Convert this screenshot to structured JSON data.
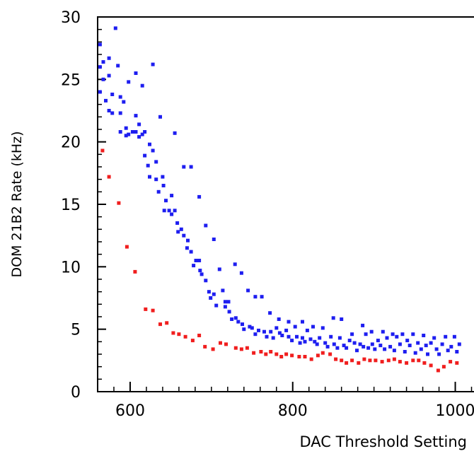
{
  "chart_data": {
    "type": "scatter",
    "title": "",
    "xlabel": "DAC Threshold Setting",
    "ylabel": "DOM 21B2 Rate (kHz)",
    "xlim": [
      560,
      1030
    ],
    "ylim": [
      0,
      30
    ],
    "xticks": [
      600,
      800,
      1000
    ],
    "xtick_labels": [
      "600",
      "800",
      "1000"
    ],
    "yticks": [
      0,
      5,
      10,
      15,
      20,
      25,
      30
    ],
    "ytick_labels": [
      "0",
      "5",
      "10",
      "15",
      "20",
      "25",
      "30"
    ],
    "grid": false,
    "legend": "none",
    "series": [
      {
        "color": "#1e1ef0",
        "points": [
          [
            563,
            27.8
          ],
          [
            563,
            26.0
          ],
          [
            563,
            24.0
          ],
          [
            567,
            26.4
          ],
          [
            567,
            25.0
          ],
          [
            570,
            23.3
          ],
          [
            574,
            26.7
          ],
          [
            574,
            25.3
          ],
          [
            574,
            22.5
          ],
          [
            578,
            23.8
          ],
          [
            578,
            22.3
          ],
          [
            582,
            29.1
          ],
          [
            585,
            26.1
          ],
          [
            588,
            23.6
          ],
          [
            588,
            22.3
          ],
          [
            588,
            20.8
          ],
          [
            592,
            23.2
          ],
          [
            595,
            21.1
          ],
          [
            595,
            20.5
          ],
          [
            598,
            24.8
          ],
          [
            598,
            20.6
          ],
          [
            603,
            20.8
          ],
          [
            607,
            25.5
          ],
          [
            607,
            22.1
          ],
          [
            607,
            20.8
          ],
          [
            611,
            21.4
          ],
          [
            611,
            20.4
          ],
          [
            615,
            24.5
          ],
          [
            615,
            20.6
          ],
          [
            618,
            20.8
          ],
          [
            618,
            18.9
          ],
          [
            622,
            18.1
          ],
          [
            624,
            19.8
          ],
          [
            624,
            17.2
          ],
          [
            628,
            26.2
          ],
          [
            628,
            19.3
          ],
          [
            632,
            18.4
          ],
          [
            632,
            17.0
          ],
          [
            635,
            16.0
          ],
          [
            637,
            22.0
          ],
          [
            640,
            17.2
          ],
          [
            641,
            16.5
          ],
          [
            642,
            14.5
          ],
          [
            644,
            15.3
          ],
          [
            648,
            14.5
          ],
          [
            651,
            15.7
          ],
          [
            651,
            14.2
          ],
          [
            655,
            20.7
          ],
          [
            655,
            14.5
          ],
          [
            658,
            13.5
          ],
          [
            659,
            12.8
          ],
          [
            663,
            13.0
          ],
          [
            666,
            18.0
          ],
          [
            666,
            12.5
          ],
          [
            670,
            11.5
          ],
          [
            671,
            12.1
          ],
          [
            675,
            18.0
          ],
          [
            675,
            11.2
          ],
          [
            678,
            10.1
          ],
          [
            681,
            10.5
          ],
          [
            685,
            15.6
          ],
          [
            685,
            10.5
          ],
          [
            686,
            9.7
          ],
          [
            688,
            9.4
          ],
          [
            693,
            13.3
          ],
          [
            693,
            8.9
          ],
          [
            697,
            8.0
          ],
          [
            699,
            7.5
          ],
          [
            703,
            12.2
          ],
          [
            703,
            7.8
          ],
          [
            706,
            6.9
          ],
          [
            710,
            9.8
          ],
          [
            714,
            8.1
          ],
          [
            717,
            7.2
          ],
          [
            717,
            6.8
          ],
          [
            721,
            7.2
          ],
          [
            722,
            6.4
          ],
          [
            725,
            5.8
          ],
          [
            729,
            10.2
          ],
          [
            730,
            5.9
          ],
          [
            733,
            5.6
          ],
          [
            737,
            9.5
          ],
          [
            738,
            5.4
          ],
          [
            740,
            5.0
          ],
          [
            745,
            8.1
          ],
          [
            747,
            5.2
          ],
          [
            750,
            5.1
          ],
          [
            754,
            7.6
          ],
          [
            754,
            4.6
          ],
          [
            758,
            4.9
          ],
          [
            762,
            7.6
          ],
          [
            765,
            4.8
          ],
          [
            768,
            4.4
          ],
          [
            772,
            6.3
          ],
          [
            773,
            4.8
          ],
          [
            776,
            4.3
          ],
          [
            780,
            5.1
          ],
          [
            783,
            5.8
          ],
          [
            784,
            4.7
          ],
          [
            787,
            4.5
          ],
          [
            792,
            4.9
          ],
          [
            795,
            5.6
          ],
          [
            795,
            4.4
          ],
          [
            799,
            4.1
          ],
          [
            803,
            5.2
          ],
          [
            805,
            4.4
          ],
          [
            809,
            3.9
          ],
          [
            812,
            5.6
          ],
          [
            812,
            4.3
          ],
          [
            815,
            4.0
          ],
          [
            818,
            4.9
          ],
          [
            822,
            4.2
          ],
          [
            825,
            5.2
          ],
          [
            827,
            4.0
          ],
          [
            830,
            3.8
          ],
          [
            833,
            4.3
          ],
          [
            837,
            5.1
          ],
          [
            840,
            3.9
          ],
          [
            843,
            3.6
          ],
          [
            847,
            4.4
          ],
          [
            850,
            5.9
          ],
          [
            851,
            3.8
          ],
          [
            855,
            3.5
          ],
          [
            858,
            4.3
          ],
          [
            860,
            5.8
          ],
          [
            863,
            3.7
          ],
          [
            866,
            3.5
          ],
          [
            870,
            4.1
          ],
          [
            873,
            4.6
          ],
          [
            876,
            3.9
          ],
          [
            879,
            3.3
          ],
          [
            883,
            3.8
          ],
          [
            886,
            5.3
          ],
          [
            887,
            3.6
          ],
          [
            890,
            4.6
          ],
          [
            893,
            3.5
          ],
          [
            897,
            4.8
          ],
          [
            898,
            3.8
          ],
          [
            901,
            3.4
          ],
          [
            905,
            4.1
          ],
          [
            908,
            3.7
          ],
          [
            911,
            4.8
          ],
          [
            913,
            3.4
          ],
          [
            916,
            4.3
          ],
          [
            920,
            3.6
          ],
          [
            923,
            4.6
          ],
          [
            925,
            3.3
          ],
          [
            928,
            4.4
          ],
          [
            932,
            3.8
          ],
          [
            935,
            4.6
          ],
          [
            938,
            3.2
          ],
          [
            941,
            4.1
          ],
          [
            944,
            3.7
          ],
          [
            948,
            4.6
          ],
          [
            951,
            3.1
          ],
          [
            954,
            3.9
          ],
          [
            958,
            3.4
          ],
          [
            961,
            4.5
          ],
          [
            964,
            3.7
          ],
          [
            966,
            3.0
          ],
          [
            970,
            3.9
          ],
          [
            974,
            4.3
          ],
          [
            977,
            3.4
          ],
          [
            980,
            3.0
          ],
          [
            984,
            3.8
          ],
          [
            988,
            4.4
          ],
          [
            991,
            3.3
          ],
          [
            995,
            3.6
          ],
          [
            999,
            4.4
          ],
          [
            1002,
            3.2
          ],
          [
            1005,
            3.8
          ]
        ]
      },
      {
        "color": "#f01e1e",
        "points": [
          [
            566,
            19.3
          ],
          [
            574,
            17.2
          ],
          [
            586,
            15.1
          ],
          [
            596,
            11.6
          ],
          [
            606,
            9.6
          ],
          [
            619,
            6.6
          ],
          [
            628,
            6.5
          ],
          [
            637,
            5.4
          ],
          [
            645,
            5.5
          ],
          [
            653,
            4.7
          ],
          [
            660,
            4.6
          ],
          [
            668,
            4.4
          ],
          [
            677,
            4.1
          ],
          [
            685,
            4.5
          ],
          [
            692,
            3.6
          ],
          [
            702,
            3.4
          ],
          [
            711,
            3.9
          ],
          [
            718,
            3.8
          ],
          [
            730,
            3.5
          ],
          [
            737,
            3.4
          ],
          [
            744,
            3.5
          ],
          [
            752,
            3.1
          ],
          [
            761,
            3.2
          ],
          [
            767,
            3.0
          ],
          [
            773,
            3.2
          ],
          [
            780,
            3.0
          ],
          [
            786,
            2.8
          ],
          [
            792,
            3.0
          ],
          [
            799,
            2.9
          ],
          [
            808,
            2.8
          ],
          [
            815,
            2.8
          ],
          [
            823,
            2.6
          ],
          [
            831,
            2.9
          ],
          [
            837,
            3.1
          ],
          [
            846,
            3.0
          ],
          [
            853,
            2.6
          ],
          [
            860,
            2.5
          ],
          [
            866,
            2.3
          ],
          [
            873,
            2.5
          ],
          [
            881,
            2.3
          ],
          [
            888,
            2.6
          ],
          [
            895,
            2.5
          ],
          [
            902,
            2.5
          ],
          [
            910,
            2.4
          ],
          [
            918,
            2.5
          ],
          [
            925,
            2.6
          ],
          [
            932,
            2.4
          ],
          [
            940,
            2.3
          ],
          [
            948,
            2.5
          ],
          [
            955,
            2.5
          ],
          [
            962,
            2.3
          ],
          [
            970,
            2.1
          ],
          [
            979,
            1.7
          ],
          [
            986,
            2.0
          ],
          [
            994,
            2.4
          ],
          [
            1002,
            2.3
          ]
        ]
      }
    ]
  }
}
